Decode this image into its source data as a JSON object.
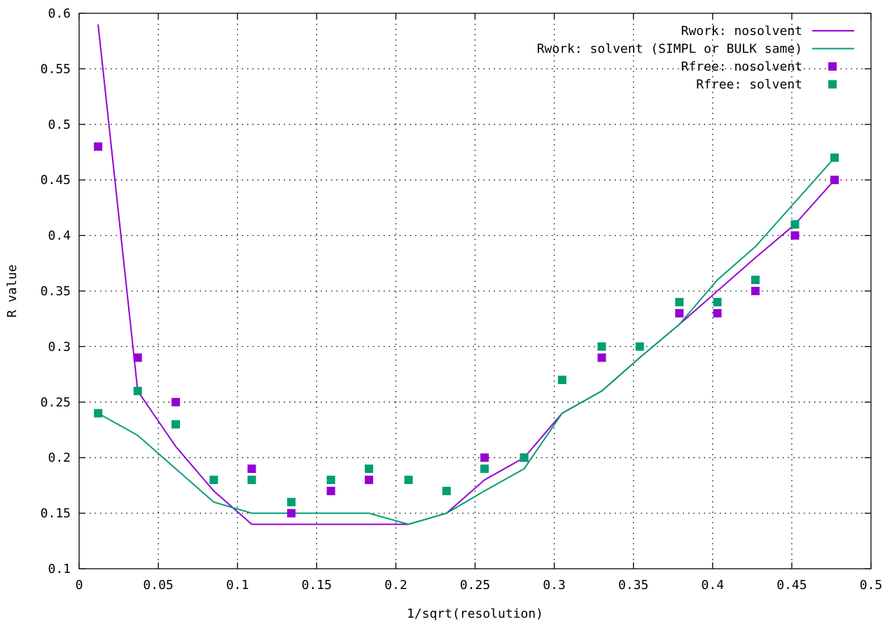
{
  "chart_data": {
    "type": "line",
    "title": "",
    "xlabel": "1/sqrt(resolution)",
    "ylabel": "R value",
    "xlim": [
      0,
      0.5
    ],
    "ylim": [
      0.1,
      0.6
    ],
    "grid": true,
    "legend_position": "top-right",
    "x_ticks": [
      "0",
      "0.05",
      "0.1",
      "0.15",
      "0.2",
      "0.25",
      "0.3",
      "0.35",
      "0.4",
      "0.45",
      "0.5"
    ],
    "y_ticks": [
      "0.1",
      "0.15",
      "0.2",
      "0.25",
      "0.3",
      "0.35",
      "0.4",
      "0.45",
      "0.5",
      "0.55",
      "0.6"
    ],
    "series": [
      {
        "name": "Rwork: nosolvent",
        "kind": "line",
        "color": "#9400d3",
        "x": [
          0.012,
          0.037,
          0.061,
          0.085,
          0.109,
          0.134,
          0.159,
          0.183,
          0.208,
          0.232,
          0.256,
          0.281,
          0.305,
          0.33,
          0.354,
          0.379,
          0.403,
          0.427,
          0.452,
          0.477
        ],
        "y": [
          0.59,
          0.26,
          0.21,
          0.17,
          0.14,
          0.14,
          0.14,
          0.14,
          0.14,
          0.15,
          0.18,
          0.2,
          0.24,
          0.26,
          0.29,
          0.32,
          0.35,
          0.38,
          0.41,
          0.45
        ]
      },
      {
        "name": "Rwork: solvent (SIMPL or BULK same)",
        "kind": "line",
        "color": "#009e73",
        "x": [
          0.012,
          0.037,
          0.061,
          0.085,
          0.109,
          0.134,
          0.159,
          0.183,
          0.208,
          0.232,
          0.256,
          0.281,
          0.305,
          0.33,
          0.354,
          0.379,
          0.403,
          0.427,
          0.452,
          0.477
        ],
        "y": [
          0.24,
          0.22,
          0.19,
          0.16,
          0.15,
          0.15,
          0.15,
          0.15,
          0.14,
          0.15,
          0.17,
          0.19,
          0.24,
          0.26,
          0.29,
          0.32,
          0.36,
          0.39,
          0.43,
          0.47
        ]
      },
      {
        "name": "Rfree: nosolvent",
        "kind": "points",
        "color": "#9400d3",
        "x": [
          0.012,
          0.037,
          0.061,
          0.109,
          0.134,
          0.159,
          0.183,
          0.256,
          0.281,
          0.33,
          0.379,
          0.403,
          0.427,
          0.452,
          0.477
        ],
        "y": [
          0.48,
          0.29,
          0.25,
          0.19,
          0.15,
          0.17,
          0.18,
          0.2,
          0.2,
          0.29,
          0.33,
          0.33,
          0.35,
          0.4,
          0.45
        ]
      },
      {
        "name": "Rfree: solvent",
        "kind": "points",
        "color": "#009e73",
        "x": [
          0.012,
          0.037,
          0.061,
          0.085,
          0.109,
          0.134,
          0.159,
          0.183,
          0.208,
          0.232,
          0.256,
          0.281,
          0.305,
          0.33,
          0.354,
          0.379,
          0.403,
          0.427,
          0.452,
          0.477
        ],
        "y": [
          0.24,
          0.26,
          0.23,
          0.18,
          0.18,
          0.16,
          0.18,
          0.19,
          0.18,
          0.17,
          0.19,
          0.2,
          0.27,
          0.3,
          0.3,
          0.34,
          0.34,
          0.36,
          0.41,
          0.47
        ]
      }
    ]
  }
}
